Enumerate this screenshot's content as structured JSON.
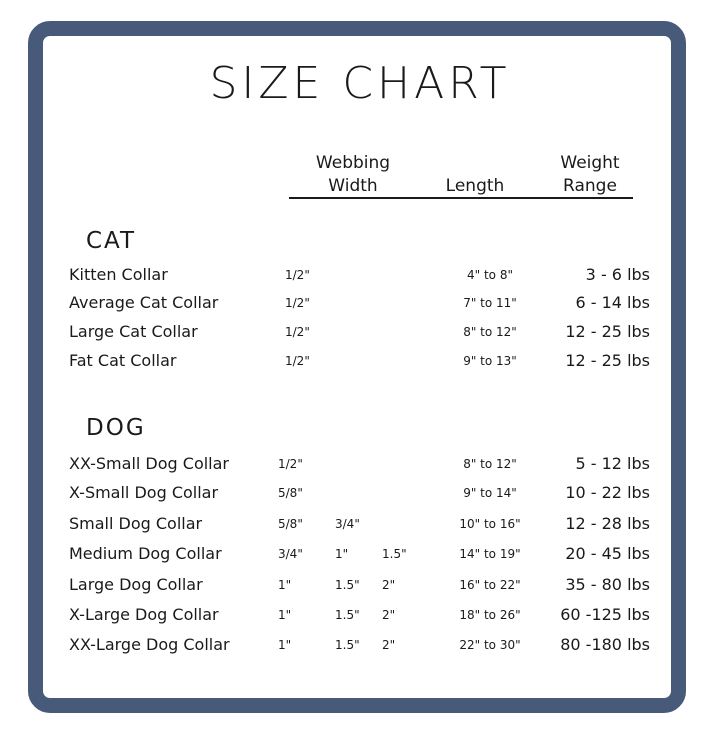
{
  "title": "SIZE CHART",
  "columns": {
    "webbing_width": [
      "Webbing",
      "Width"
    ],
    "length": "Length",
    "weight_range": [
      "Weight",
      "Range"
    ]
  },
  "border_color": "#475a7a",
  "sections": [
    {
      "label": "CAT",
      "rows": [
        {
          "name": "Kitten Collar",
          "widths": [
            "1/2\""
          ],
          "length": "4\" to 8\"",
          "weight": "3 - 6 lbs"
        },
        {
          "name": "Average Cat Collar",
          "widths": [
            "1/2\""
          ],
          "length": "7\" to 11\"",
          "weight": "6 - 14 lbs"
        },
        {
          "name": "Large Cat Collar",
          "widths": [
            "1/2\""
          ],
          "length": "8\" to 12\"",
          "weight": "12 - 25 lbs"
        },
        {
          "name": "Fat Cat Collar",
          "widths": [
            "1/2\""
          ],
          "length": "9\" to 13\"",
          "weight": "12 - 25 lbs"
        }
      ]
    },
    {
      "label": "DOG",
      "rows": [
        {
          "name": "XX-Small Dog Collar",
          "widths": [
            "1/2\""
          ],
          "length": "8\" to 12\"",
          "weight": "5 - 12 lbs"
        },
        {
          "name": "X-Small Dog Collar",
          "widths": [
            "5/8\""
          ],
          "length": "9\" to 14\"",
          "weight": "10 - 22 lbs"
        },
        {
          "name": "Small Dog Collar",
          "widths": [
            "5/8\"",
            "3/4\""
          ],
          "length": "10\" to 16\"",
          "weight": "12 - 28 lbs"
        },
        {
          "name": "Medium Dog Collar",
          "widths": [
            "3/4\"",
            "1\"",
            "1.5\""
          ],
          "length": "14\" to 19\"",
          "weight": "20 - 45 lbs"
        },
        {
          "name": "Large Dog Collar",
          "widths": [
            "1\"",
            "1.5\"",
            "2\""
          ],
          "length": "16\" to 22\"",
          "weight": "35 - 80 lbs"
        },
        {
          "name": "X-Large Dog Collar",
          "widths": [
            "1\"",
            "1.5\"",
            "2\""
          ],
          "length": "18\" to 26\"",
          "weight": "60 -125 lbs"
        },
        {
          "name": "XX-Large Dog Collar",
          "widths": [
            "1\"",
            "1.5\"",
            "2\""
          ],
          "length": "22\" to 30\"",
          "weight": "80 -180 lbs"
        }
      ]
    }
  ]
}
